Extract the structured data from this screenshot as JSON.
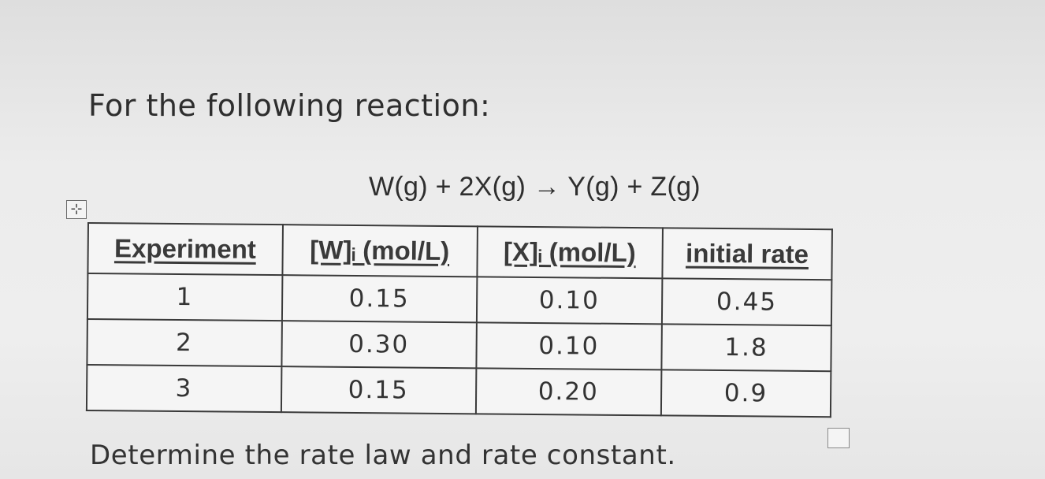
{
  "intro_text": "For the following reaction:",
  "equation": "W(g) + 2X(g) → Y(g) + Z(g)",
  "table_handle_icon": "⊹",
  "table": {
    "headers": [
      "Experiment",
      "[W]ᵢ (mol/L)",
      "[X]ᵢ (mol/L)",
      "initial rate"
    ],
    "rows": [
      [
        "1",
        "0.15",
        "0.10",
        "0.45"
      ],
      [
        "2",
        "0.30",
        "0.10",
        "1.8"
      ],
      [
        "3",
        "0.15",
        "0.20",
        "0.9"
      ]
    ]
  },
  "question_text": "Determine the rate law and rate constant."
}
